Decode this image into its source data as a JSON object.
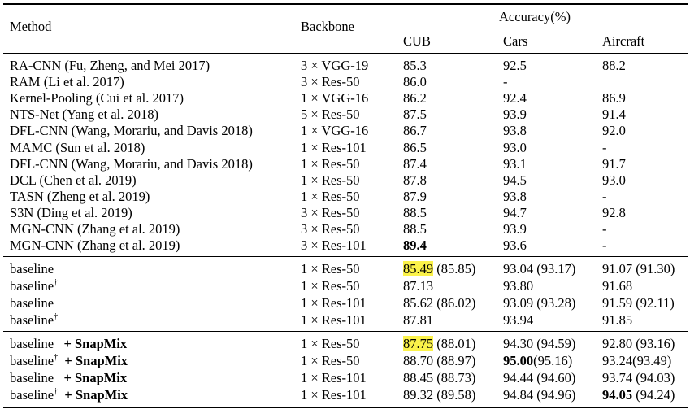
{
  "header": {
    "method": "Method",
    "backbone": "Backbone",
    "accuracy": "Accuracy(%)",
    "cub": "CUB",
    "cars": "Cars",
    "aircraft": "Aircraft"
  },
  "group1": [
    {
      "method": "RA-CNN (Fu, Zheng, and Mei 2017)",
      "backbone": "3 × VGG-19",
      "cub": "85.3",
      "cars": "92.5",
      "aircraft": "88.2"
    },
    {
      "method": "RAM (Li et al. 2017)",
      "backbone": "3 × Res-50",
      "cub": "86.0",
      "cars": "-",
      "aircraft": ""
    },
    {
      "method": "Kernel-Pooling (Cui et al. 2017)",
      "backbone": "1 × VGG-16",
      "cub": "86.2",
      "cars": "92.4",
      "aircraft": "86.9"
    },
    {
      "method": "NTS-Net (Yang et al. 2018)",
      "backbone": "5 × Res-50",
      "cub": "87.5",
      "cars": "93.9",
      "aircraft": "91.4"
    },
    {
      "method": "DFL-CNN (Wang, Morariu, and Davis 2018)",
      "backbone": "1 × VGG-16",
      "cub": "86.7",
      "cars": "93.8",
      "aircraft": "92.0"
    },
    {
      "method": "MAMC (Sun et al. 2018)",
      "backbone": "1 × Res-101",
      "cub": "86.5",
      "cars": "93.0",
      "aircraft": "-"
    },
    {
      "method": "DFL-CNN (Wang, Morariu, and Davis 2018)",
      "backbone": "1 × Res-50",
      "cub": "87.4",
      "cars": "93.1",
      "aircraft": "91.7"
    },
    {
      "method": "DCL (Chen et al. 2019)",
      "backbone": "1 × Res-50",
      "cub": "87.8",
      "cars": "94.5",
      "aircraft": "93.0"
    },
    {
      "method": "TASN (Zheng et al. 2019)",
      "backbone": "1 × Res-50",
      "cub": "87.9",
      "cars": "93.8",
      "aircraft": "-"
    },
    {
      "method": "S3N (Ding et al. 2019)",
      "backbone": "3 × Res-50",
      "cub": "88.5",
      "cars": "94.7",
      "aircraft": "92.8"
    },
    {
      "method": "MGN-CNN (Zhang et al. 2019)",
      "backbone": "3 × Res-50",
      "cub": "88.5",
      "cars": "93.9",
      "aircraft": "-"
    },
    {
      "method": "MGN-CNN (Zhang et al. 2019)",
      "backbone": "3 × Res-101",
      "cub": "89.4",
      "cars": "93.6",
      "aircraft": "-"
    }
  ],
  "group2": [
    {
      "method": "baseline",
      "dagger": "",
      "backbone": "1 × Res-50",
      "cub": "85.49",
      "cub_extra": " (85.85)",
      "cars": "93.04 (93.17)",
      "aircraft": "91.07 (91.30)"
    },
    {
      "method": "baseline",
      "dagger": "†",
      "backbone": "1 × Res-50",
      "cub": "87.13",
      "cub_extra": "",
      "cars": "93.80",
      "aircraft": "91.68"
    },
    {
      "method": "baseline",
      "dagger": "",
      "backbone": "1 × Res-101",
      "cub": "85.62",
      "cub_extra": " (86.02)",
      "cars": "93.09 (93.28)",
      "aircraft": "91.59 (92.11)"
    },
    {
      "method": "baseline",
      "dagger": "†",
      "backbone": "1 × Res-101",
      "cub": "87.81",
      "cub_extra": "",
      "cars": "93.94",
      "aircraft": "91.85"
    }
  ],
  "group3": [
    {
      "method": "baseline",
      "dagger": "",
      "plus": "+ SnapMix",
      "backbone": "1 × Res-50",
      "cub": "87.75",
      "cub_extra": " (88.01)",
      "cars": "94.30 (94.59)",
      "aircraft": "92.80 (93.16)"
    },
    {
      "method": "baseline",
      "dagger": "†",
      "plus": "+ SnapMix",
      "backbone": "1 × Res-50",
      "cub": "88.70 (88.97)",
      "cars_bold": "95.00",
      "cars_rest": "(95.16)",
      "aircraft": "93.24(93.49)"
    },
    {
      "method": "baseline",
      "dagger": "",
      "plus": "+ SnapMix",
      "backbone": "1 × Res-101",
      "cub": "88.45 (88.73)",
      "cars": "94.44 (94.60)",
      "aircraft": "93.74 (94.03)"
    },
    {
      "method": "baseline",
      "dagger": "†",
      "plus": "+ SnapMix",
      "backbone": "1 × Res-101",
      "cub": "89.32 (89.58)",
      "cars": "94.84 (94.96)",
      "aircraft_bold": "94.05",
      "aircraft_rest": " (94.24)"
    }
  ],
  "highlight_color": "#fbf24a"
}
